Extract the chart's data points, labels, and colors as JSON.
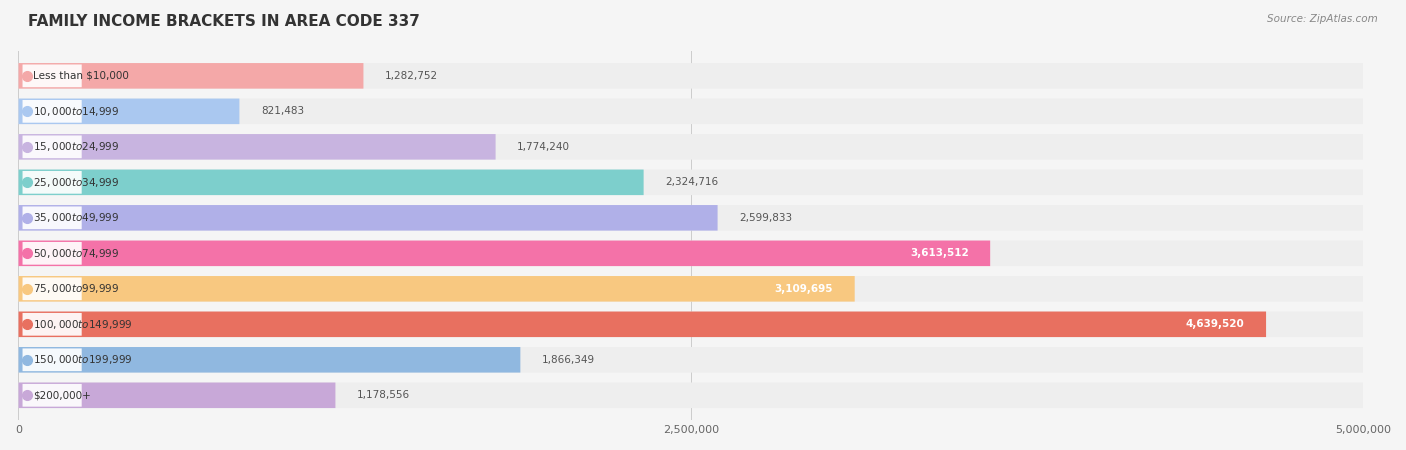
{
  "title": "FAMILY INCOME BRACKETS IN AREA CODE 337",
  "source": "Source: ZipAtlas.com",
  "categories": [
    "Less than $10,000",
    "$10,000 to $14,999",
    "$15,000 to $24,999",
    "$25,000 to $34,999",
    "$35,000 to $49,999",
    "$50,000 to $74,999",
    "$75,000 to $99,999",
    "$100,000 to $149,999",
    "$150,000 to $199,999",
    "$200,000+"
  ],
  "values": [
    1282752,
    821483,
    1774240,
    2324716,
    2599833,
    3613512,
    3109695,
    4639520,
    1866349,
    1178556
  ],
  "bar_colors": [
    "#f4a8a8",
    "#aac8f0",
    "#c8b4e0",
    "#7dcfcc",
    "#b0b0e8",
    "#f472a8",
    "#f8c880",
    "#e87060",
    "#90b8e0",
    "#c8a8d8"
  ],
  "label_colors": [
    "#555555",
    "#555555",
    "#555555",
    "#555555",
    "#555555",
    "#ffffff",
    "#ffffff",
    "#ffffff",
    "#555555",
    "#555555"
  ],
  "value_labels": [
    "1,282,752",
    "821,483",
    "1,774,240",
    "2,324,716",
    "2,599,833",
    "3,613,512",
    "3,109,695",
    "4,639,520",
    "1,866,349",
    "1,178,556"
  ],
  "xlim": [
    0,
    5000000
  ],
  "xticks": [
    0,
    2500000,
    5000000
  ],
  "xtick_labels": [
    "0",
    "2,500,000",
    "5,000,000"
  ],
  "bg_color": "#f5f5f5",
  "bar_bg_color": "#eeeeee"
}
